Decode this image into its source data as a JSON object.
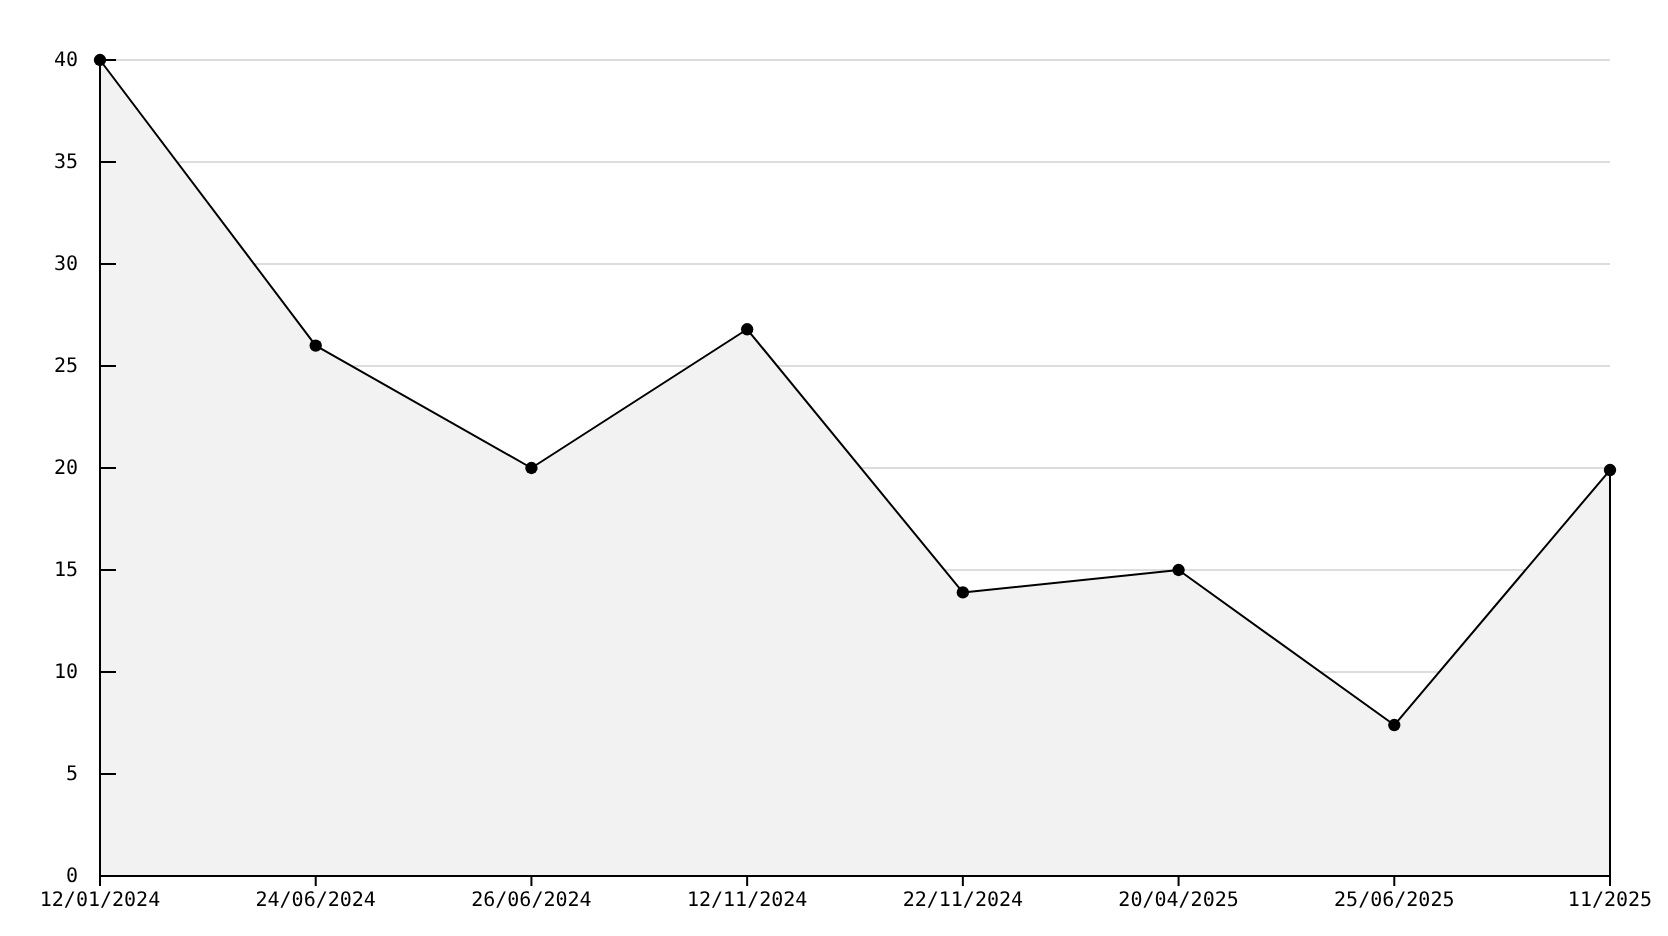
{
  "chart_data": {
    "type": "area",
    "categories": [
      "12/01/2024",
      "24/06/2024",
      "26/06/2024",
      "12/11/2024",
      "22/11/2024",
      "20/04/2025",
      "25/06/2025",
      "11/2025"
    ],
    "series": [
      {
        "color": "#f2f2f2",
        "values": [
          40,
          26,
          20,
          26.8,
          13.9,
          15,
          7.4,
          19.9
        ]
      }
    ],
    "ylim": [
      0,
      40
    ],
    "yticks": [
      0,
      5,
      10,
      15,
      20,
      25,
      30,
      35,
      40
    ],
    "grid": "y",
    "marker": "circle",
    "line_style": "solid"
  }
}
